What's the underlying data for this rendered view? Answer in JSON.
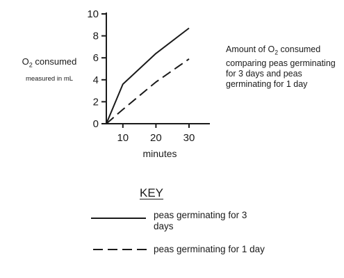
{
  "chart_data": {
    "type": "line",
    "x": [
      5,
      10,
      20,
      30
    ],
    "series": [
      {
        "name": "peas germinating for 3 days",
        "values": [
          0,
          3.6,
          6.4,
          8.7
        ],
        "style": "solid"
      },
      {
        "name": "peas germinating for 1 day",
        "values": [
          0,
          1.3,
          3.8,
          5.9
        ],
        "style": "dashed"
      }
    ],
    "xticks": [
      10,
      20,
      30
    ],
    "yticks": [
      0,
      2,
      4,
      6,
      8,
      10
    ],
    "xlim": [
      5,
      30
    ],
    "ylim": [
      0,
      10
    ],
    "xlabel": "minutes",
    "ylabel": "O2 consumed",
    "ylabel_sub": "measured in mL",
    "title": "Amount of O2 consumed comparing peas germinating for 3 days and peas germinating for 1 day",
    "legend_title": "KEY",
    "grid": false,
    "line_color": "#1a1a1a"
  }
}
